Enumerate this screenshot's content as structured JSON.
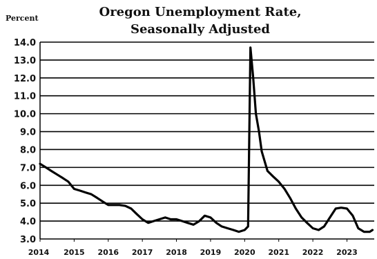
{
  "chart_data": {
    "type": "line",
    "title_lines": [
      "Oregon Unemployment Rate,",
      "Seasonally Adjusted"
    ],
    "ylabel": "Percent",
    "xlabel": "",
    "xlim": [
      2014,
      2023.8
    ],
    "ylim": [
      3.0,
      14.0
    ],
    "yticks": [
      3.0,
      4.0,
      5.0,
      6.0,
      7.0,
      8.0,
      9.0,
      10.0,
      11.0,
      12.0,
      13.0,
      14.0
    ],
    "ytick_labels": [
      "3.0",
      "4.0",
      "5.0",
      "6.0",
      "7.0",
      "8.0",
      "9.0",
      "10.0",
      "11.0",
      "12.0",
      "13.0",
      "14.0"
    ],
    "xticks": [
      2014,
      2015,
      2016,
      2017,
      2018,
      2019,
      2020,
      2021,
      2022,
      2023
    ],
    "xtick_labels": [
      "2014",
      "2015",
      "2016",
      "2017",
      "2018",
      "2019",
      "2020",
      "2021",
      "2022",
      "2023"
    ],
    "grid": "horizontal",
    "line_color": "#000000",
    "series": [
      {
        "x": [
          2014.0,
          2014.17,
          2014.33,
          2014.5,
          2014.67,
          2014.83,
          2015.0,
          2015.17,
          2015.33,
          2015.5,
          2015.67,
          2015.83,
          2016.0,
          2016.17,
          2016.33,
          2016.5,
          2016.67,
          2016.83,
          2017.0,
          2017.17,
          2017.33,
          2017.5,
          2017.67,
          2017.83,
          2018.0,
          2018.17,
          2018.33,
          2018.5,
          2018.67,
          2018.83,
          2019.0,
          2019.17,
          2019.33,
          2019.5,
          2019.67,
          2019.83,
          2020.0,
          2020.1,
          2020.17,
          2020.25,
          2020.33,
          2020.42,
          2020.5,
          2020.67,
          2020.83,
          2021.0,
          2021.17,
          2021.33,
          2021.5,
          2021.67,
          2021.83,
          2022.0,
          2022.17,
          2022.33,
          2022.5,
          2022.67,
          2022.83,
          2023.0,
          2023.17,
          2023.33,
          2023.5,
          2023.67,
          2023.75
        ],
        "y": [
          7.2,
          7.0,
          6.8,
          6.6,
          6.4,
          6.2,
          5.8,
          5.7,
          5.6,
          5.5,
          5.3,
          5.1,
          4.9,
          4.9,
          4.9,
          4.85,
          4.7,
          4.4,
          4.1,
          3.9,
          4.0,
          4.1,
          4.2,
          4.1,
          4.1,
          4.0,
          3.9,
          3.8,
          4.0,
          4.3,
          4.2,
          3.9,
          3.7,
          3.6,
          3.5,
          3.4,
          3.5,
          3.7,
          13.7,
          12.0,
          10.0,
          9.0,
          7.9,
          6.8,
          6.5,
          6.2,
          5.8,
          5.3,
          4.7,
          4.2,
          3.9,
          3.6,
          3.5,
          3.7,
          4.2,
          4.7,
          4.75,
          4.7,
          4.3,
          3.6,
          3.4,
          3.4,
          3.5
        ]
      }
    ]
  }
}
